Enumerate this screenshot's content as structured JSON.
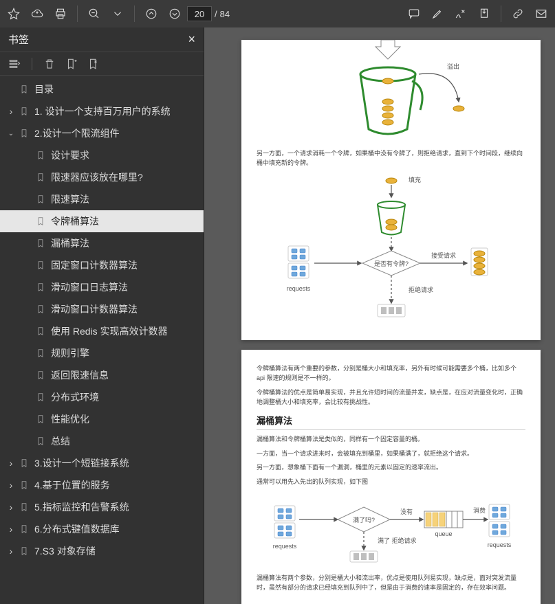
{
  "toolbar": {
    "page_current": "20",
    "page_total": "84",
    "page_sep": "/"
  },
  "sidebar": {
    "title": "书签",
    "items": [
      {
        "depth": 0,
        "twist": "",
        "label": "目录"
      },
      {
        "depth": 0,
        "twist": ">",
        "label": "1. 设计一个支持百万用户的系统"
      },
      {
        "depth": 0,
        "twist": "v",
        "label": "2.设计一个限流组件"
      },
      {
        "depth": 1,
        "twist": "",
        "label": "设计要求"
      },
      {
        "depth": 1,
        "twist": "",
        "label": "限速器应该放在哪里?"
      },
      {
        "depth": 1,
        "twist": "",
        "label": "限速算法"
      },
      {
        "depth": 1,
        "twist": "",
        "label": "令牌桶算法",
        "selected": true
      },
      {
        "depth": 1,
        "twist": "",
        "label": "漏桶算法"
      },
      {
        "depth": 1,
        "twist": "",
        "label": "固定窗口计数器算法"
      },
      {
        "depth": 1,
        "twist": "",
        "label": "滑动窗口日志算法"
      },
      {
        "depth": 1,
        "twist": "",
        "label": "滑动窗口计数器算法"
      },
      {
        "depth": 1,
        "twist": "",
        "label": "使用 Redis 实现高效计数器"
      },
      {
        "depth": 1,
        "twist": "",
        "label": "规则引擎"
      },
      {
        "depth": 1,
        "twist": "",
        "label": "返回限速信息"
      },
      {
        "depth": 1,
        "twist": "",
        "label": "分布式环境"
      },
      {
        "depth": 1,
        "twist": "",
        "label": "性能优化"
      },
      {
        "depth": 1,
        "twist": "",
        "label": "总结"
      },
      {
        "depth": 0,
        "twist": ">",
        "label": "3.设计一个短链接系统"
      },
      {
        "depth": 0,
        "twist": ">",
        "label": "4.基于位置的服务"
      },
      {
        "depth": 0,
        "twist": ">",
        "label": "5.指标监控和告警系统"
      },
      {
        "depth": 0,
        "twist": ">",
        "label": "6.分布式键值数据库"
      },
      {
        "depth": 0,
        "twist": ">",
        "label": "7.S3 对象存储"
      }
    ]
  },
  "page1": {
    "overflow_label": "溢出",
    "para1": "另一方面，一个请求消耗一个令牌，如果桶中没有令牌了，则拒绝请求，直到下个时间段，继续向桶中填充新的令牌。",
    "fill_label": "填充",
    "diamond_label": "是否有令牌?",
    "requests_label": "requests",
    "accept_label": "接受请求",
    "reject_label": "拒绝请求"
  },
  "page2": {
    "para1": "令牌桶算法有两个重要的参数，分别是桶大小和填充率，另外有时候可能需要多个桶，比如多个 api 限速的规则是不一样的。",
    "para2": "令牌桶算法的优点是简单易实现，并且允许短时间的流量并发，缺点是，在应对流量变化时，正确地调整桶大小和填充率，会比较有挑战性。",
    "heading": "漏桶算法",
    "para3": "漏桶算法和令牌桶算法是类似的，同样有一个固定容量的桶。",
    "para4": "一方面，当一个请求进来时，会被填充到桶里，如果桶满了，就拒绝这个请求。",
    "para5": "另一方面，想象桶下面有一个漏洞，桶里的元素以固定的速率流出。",
    "para6": "通常可以用先入先出的队列实现，如下图",
    "diamond_label": "满了吗?",
    "requests_label": "requests",
    "no_label": "没有",
    "queue_label": "queue",
    "consume_label": "消费",
    "requests_label2": "requests",
    "full_label": "满了 拒绝请求",
    "para7": "漏桶算法有两个参数，分别是桶大小和流出率，优点是使用队列易实现，缺点是，面对突发流量时，虽然有部分的请求已经填充到队列中了，但是由于消费的速率是固定的，存在效率问题。"
  },
  "colors": {
    "bucket_stroke": "#2e8b2e",
    "coin_fill": "#e9b23a",
    "coin_stroke": "#b8860b",
    "req_fill": "#6fa8dc",
    "req_stroke": "#3d7cc9",
    "diamond_stroke": "#888",
    "arrow_stroke": "#555",
    "queue_fill": "#f6d27a",
    "grey_fill": "#bfbfbf"
  }
}
